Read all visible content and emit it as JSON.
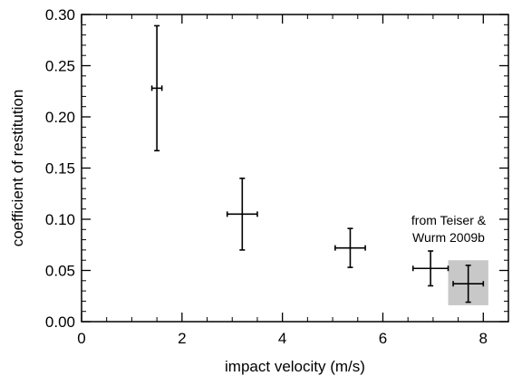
{
  "chart_data": {
    "type": "scatter",
    "title": "",
    "xlabel": "impact velocity (m/s)",
    "ylabel": "coefficient of restitution",
    "xlim": [
      0,
      8.5
    ],
    "ylim": [
      0,
      0.3
    ],
    "x_ticks": [
      0,
      2,
      4,
      6,
      8
    ],
    "x_tick_labels": [
      "0",
      "2",
      "4",
      "6",
      "8"
    ],
    "y_ticks": [
      0,
      0.05,
      0.1,
      0.15,
      0.2,
      0.25,
      0.3
    ],
    "y_tick_labels": [
      "0.00",
      "0.05",
      "0.10",
      "0.15",
      "0.20",
      "0.25",
      "0.30"
    ],
    "grid": false,
    "legend": "none",
    "colors": {
      "data": "#000000",
      "highlight": "#c8c8c8"
    },
    "points": [
      {
        "x": 1.5,
        "y": 0.228,
        "x_err": 0.1,
        "y_err_low": 0.061,
        "y_err_high": 0.061
      },
      {
        "x": 3.2,
        "y": 0.105,
        "x_err": 0.3,
        "y_err_low": 0.035,
        "y_err_high": 0.035
      },
      {
        "x": 5.35,
        "y": 0.072,
        "x_err": 0.3,
        "y_err_low": 0.019,
        "y_err_high": 0.019
      },
      {
        "x": 6.95,
        "y": 0.052,
        "x_err": 0.35,
        "y_err_low": 0.017,
        "y_err_high": 0.017
      },
      {
        "x": 7.7,
        "y": 0.037,
        "x_err": 0.3,
        "y_err_low": 0.018,
        "y_err_high": 0.018
      }
    ],
    "highlight": {
      "annotation": [
        "from Teiser &",
        "Wurm 2009b"
      ],
      "x_range": [
        7.3,
        8.1
      ],
      "y_range": [
        0.016,
        0.06
      ],
      "point_index": 4
    }
  }
}
